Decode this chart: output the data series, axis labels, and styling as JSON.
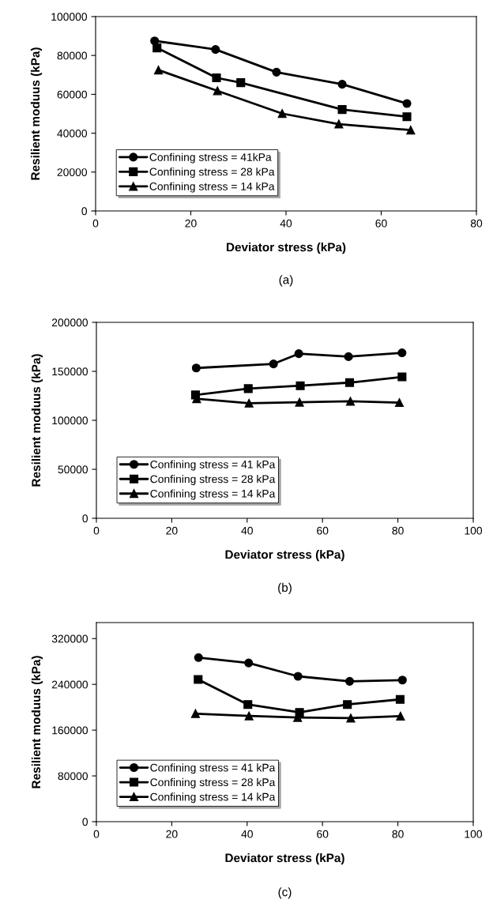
{
  "chart_data": [
    {
      "type": "line",
      "xlabel": "Deviator stress (kPa)",
      "ylabel": "Resilient moduus (kPa)",
      "annotations": [
        "(a)"
      ],
      "xlim": [
        0,
        80
      ],
      "xticks": [
        0,
        20,
        40,
        60,
        80
      ],
      "ylim": [
        0,
        100000
      ],
      "yticks": [
        0,
        20000,
        40000,
        60000,
        80000,
        100000
      ],
      "grid": false,
      "legend": "bottom left",
      "line_style": "solid",
      "series": [
        {
          "name": "Confining stress = 41kPa",
          "color": "#000000",
          "marker": "circle",
          "x": [
            12.4,
            25.2,
            38.0,
            51.8,
            65.4
          ],
          "values": [
            87500,
            83100,
            71400,
            65200,
            55300
          ]
        },
        {
          "name": "Confining stress = 28 kPa",
          "color": "#000000",
          "marker": "square",
          "x": [
            12.9,
            25.4,
            30.5,
            51.8,
            65.4
          ],
          "values": [
            83900,
            68500,
            66000,
            52200,
            48500
          ]
        },
        {
          "name": "Confining stress = 14 kPa",
          "color": "#000000",
          "marker": "triangle",
          "x": [
            13.2,
            25.6,
            39.2,
            51.1,
            66.2
          ],
          "values": [
            72500,
            61800,
            50100,
            44700,
            41600
          ]
        }
      ]
    },
    {
      "type": "line",
      "xlabel": "Deviator stress (kPa)",
      "ylabel": "Resilient moduus (kPa)",
      "annotations": [
        "(b)"
      ],
      "xlim": [
        0,
        100
      ],
      "xticks": [
        0,
        20,
        40,
        60,
        80,
        100
      ],
      "ylim": [
        0,
        200000
      ],
      "yticks": [
        0,
        50000,
        100000,
        150000,
        200000
      ],
      "grid": false,
      "legend": "bottom left",
      "line_style": "solid",
      "series": [
        {
          "name": "Confining stress = 41 kPa",
          "color": "#000000",
          "marker": "circle",
          "x": [
            26.5,
            47.0,
            53.7,
            66.9,
            81.1
          ],
          "values": [
            153400,
            157600,
            168000,
            165000,
            168900
          ]
        },
        {
          "name": "Confining stress = 28 kPa",
          "color": "#000000",
          "marker": "square",
          "x": [
            26.3,
            40.3,
            54.1,
            67.2,
            81.1
          ],
          "values": [
            125900,
            132400,
            135300,
            138500,
            144300
          ]
        },
        {
          "name": "Confining stress = 14 kPa",
          "color": "#000000",
          "marker": "triangle",
          "x": [
            26.6,
            40.5,
            53.9,
            67.4,
            80.4
          ],
          "values": [
            122000,
            117500,
            118400,
            119400,
            118100
          ]
        }
      ]
    },
    {
      "type": "line",
      "xlabel": "Deviator stress (kPa)",
      "ylabel": "Resilient moduus (kPa)",
      "annotations": [
        "(c)"
      ],
      "xlim": [
        0,
        100
      ],
      "xticks": [
        0,
        20,
        40,
        60,
        80,
        100
      ],
      "ylim": [
        0,
        348000
      ],
      "yticks": [
        0,
        80000,
        160000,
        240000,
        320000
      ],
      "grid": false,
      "legend": "bottom left",
      "line_style": "solid",
      "series": [
        {
          "name": "Confining stress = 41 kPa",
          "color": "#000000",
          "marker": "circle",
          "x": [
            27.1,
            40.4,
            53.5,
            67.2,
            81.2
          ],
          "values": [
            286800,
            277400,
            254100,
            245300,
            247500
          ]
        },
        {
          "name": "Confining stress = 28 kPa",
          "color": "#000000",
          "marker": "square",
          "x": [
            27.0,
            40.2,
            53.9,
            66.6,
            80.6
          ],
          "values": [
            248600,
            204800,
            191000,
            204800,
            213700
          ]
        },
        {
          "name": "Confining stress = 14 kPa",
          "color": "#000000",
          "marker": "triangle",
          "x": [
            26.3,
            40.5,
            53.4,
            67.5,
            80.7
          ],
          "values": [
            188800,
            184900,
            182100,
            181000,
            184400
          ]
        }
      ]
    }
  ]
}
